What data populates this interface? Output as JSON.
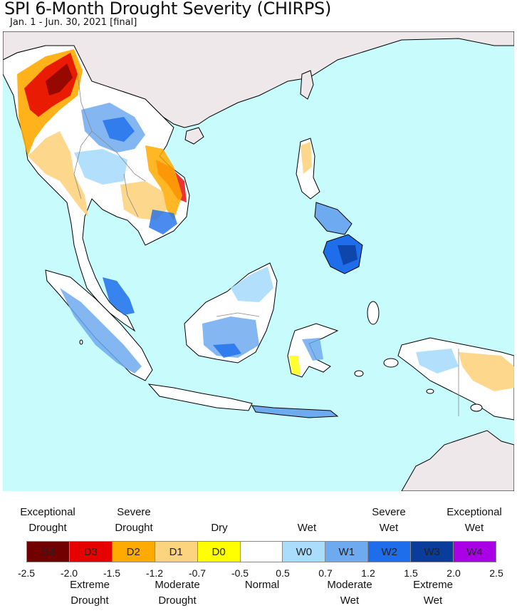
{
  "title": "SPI 6-Month Drought Severity (CHIRPS)",
  "subtitle": "Jan. 1 - Jun. 30, 2021 [final]",
  "colors": {
    "ocean": "#c8fcfc",
    "land_outside": "#efe8ea",
    "normal": "#ffffff"
  },
  "legend": {
    "categories": [
      {
        "code": "D4",
        "color": "#730000"
      },
      {
        "code": "D3",
        "color": "#e60000"
      },
      {
        "code": "D2",
        "color": "#ffaa00"
      },
      {
        "code": "D1",
        "color": "#fcd37f"
      },
      {
        "code": "D0",
        "color": "#ffff00"
      },
      {
        "code": "",
        "color": "#ffffff"
      },
      {
        "code": "W0",
        "color": "#aadcfc"
      },
      {
        "code": "W1",
        "color": "#6eaaf0"
      },
      {
        "code": "W2",
        "color": "#1e6eeb"
      },
      {
        "code": "W3",
        "color": "#0a3c9b"
      },
      {
        "code": "W4",
        "color": "#aa00e6"
      }
    ],
    "ticks": [
      "-2.5",
      "-2.0",
      "-1.5",
      "-1.2",
      "-0.7",
      "-0.5",
      "0.5",
      "0.7",
      "1.2",
      "1.5",
      "2.0",
      "2.5"
    ],
    "top_labels": {
      "exceptional_drought": "Exceptional\nDrought",
      "severe_drought": "Severe\nDrought",
      "dry": "Dry",
      "wet": "Wet",
      "severe_wet": "Severe\nWet",
      "exceptional_wet": "Exceptional\nWet"
    },
    "bottom_labels": {
      "extreme_drought": "Extreme\nDrought",
      "moderate_drought": "Moderate\nDrought",
      "normal": "Normal",
      "moderate_wet": "Moderate\nWet",
      "extreme_wet": "Extreme\nWet"
    }
  }
}
